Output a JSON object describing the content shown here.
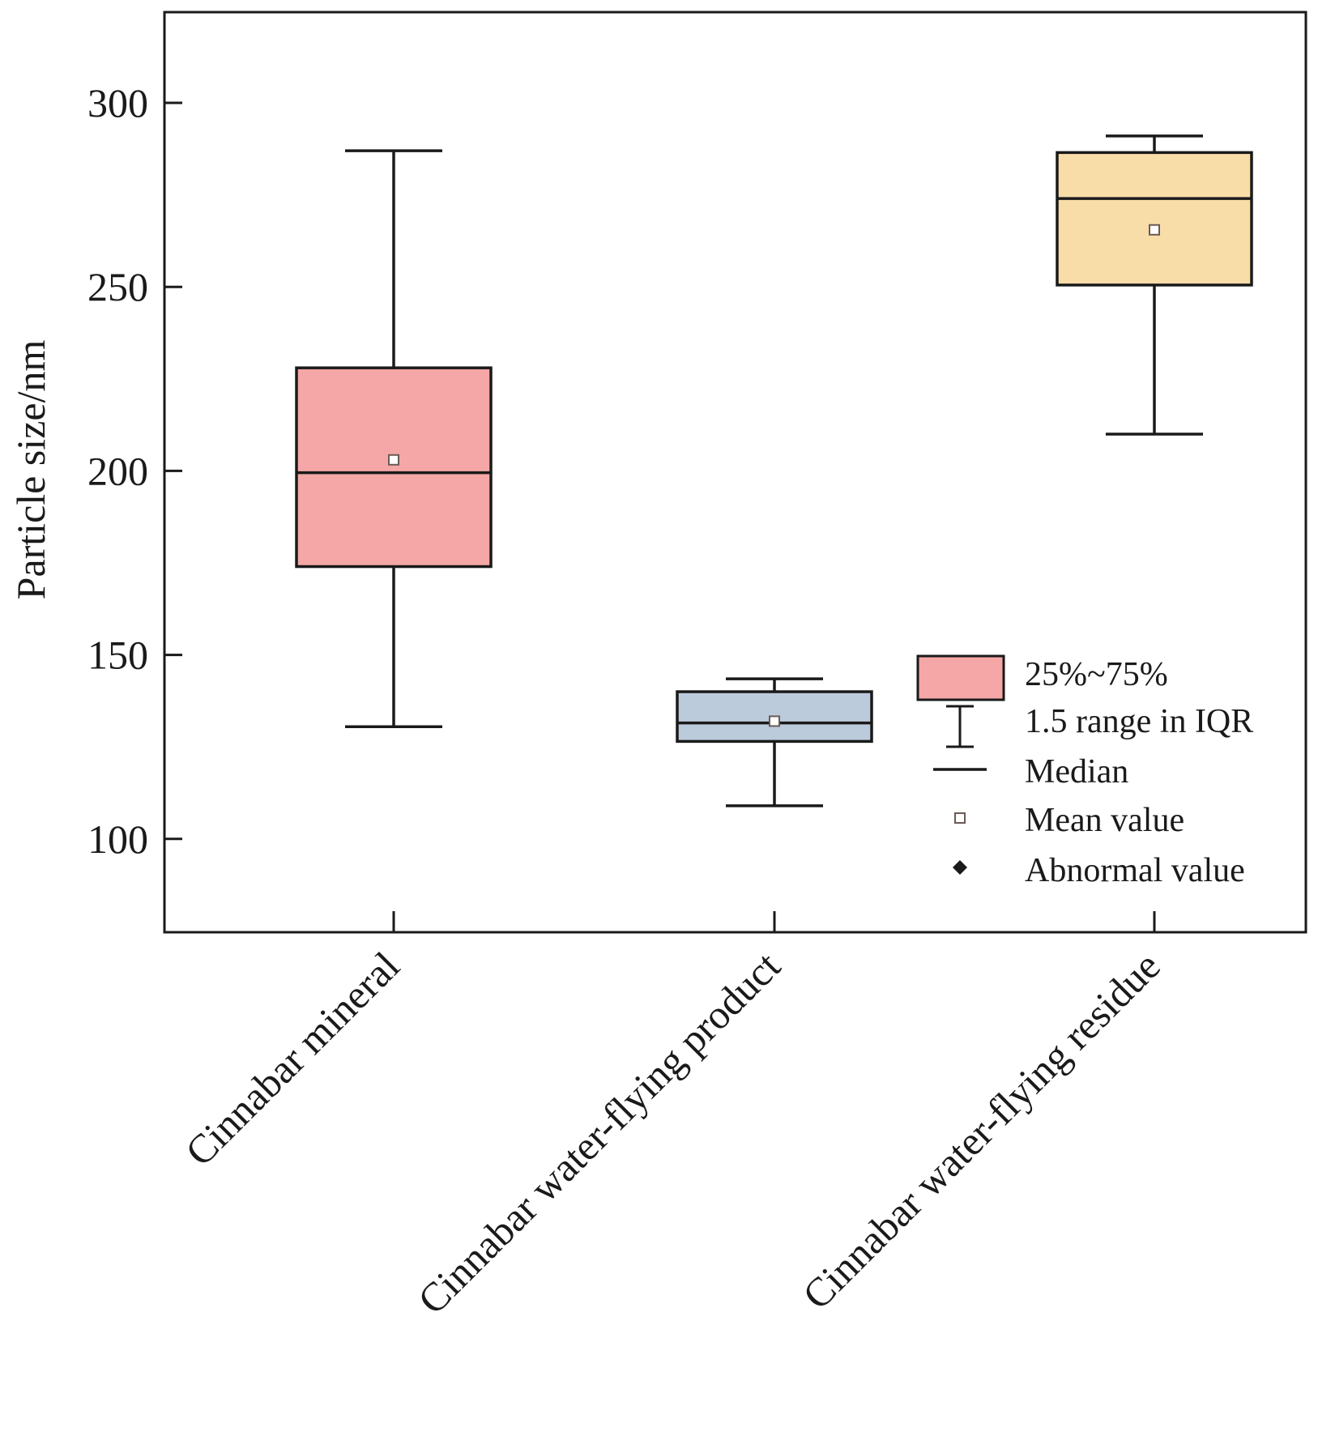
{
  "chart_data": {
    "type": "box",
    "title": "",
    "ylabel": "Particle size/nm",
    "xlabel": "",
    "ylim": [
      75,
      325
    ],
    "yticks": [
      100,
      150,
      200,
      250,
      300
    ],
    "grid": false,
    "categories": [
      "Cinnabar mineral",
      "Cinnabar water-flying product",
      "Cinnabar water-flying residue"
    ],
    "boxes": [
      {
        "name": "Cinnabar mineral",
        "whisker_low": 130.5,
        "q1": 174,
        "median": 199.5,
        "q3": 228,
        "whisker_high": 287,
        "mean": 203,
        "fill": "#f4a7a6"
      },
      {
        "name": "Cinnabar water-flying product",
        "whisker_low": 109,
        "q1": 126.5,
        "median": 131.5,
        "q3": 140,
        "whisker_high": 143.5,
        "mean": 132,
        "fill": "#bccbdc"
      },
      {
        "name": "Cinnabar water-flying residue",
        "whisker_low": 210,
        "q1": 250.5,
        "median": 274,
        "q3": 286.5,
        "whisker_high": 291,
        "mean": 265.5,
        "fill": "#f8dda9"
      }
    ],
    "legend": {
      "position": "bottom-right",
      "items": [
        {
          "key": "box",
          "label": "25%~75%"
        },
        {
          "key": "whisker",
          "label": "1.5 range in IQR"
        },
        {
          "key": "median",
          "label": "Median"
        },
        {
          "key": "mean",
          "label": "Mean value"
        },
        {
          "key": "outlier",
          "label": "Abnormal value"
        }
      ]
    },
    "colors": {
      "axis": "#1a1a1a",
      "box_stroke": "#1a1a1a",
      "mean_marker": "#6b5a55"
    }
  }
}
